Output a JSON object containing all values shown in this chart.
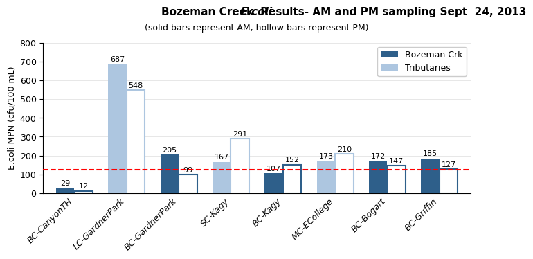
{
  "title_part1": "Bozeman Creek ",
  "title_ecoli": "E.coli",
  "title_part2": " Results- AM and PM sampling Sept  24, 2013",
  "title_line2": "(solid bars represent AM, hollow bars represent PM)",
  "ylabel": "E.coli MPN (cfu/100 mL)",
  "ylim": [
    0,
    800
  ],
  "yticks": [
    0,
    100,
    200,
    300,
    400,
    500,
    600,
    700,
    800
  ],
  "redline_y": 126,
  "categories": [
    "BC-CanyonTH",
    "LC-GardnerPark",
    "BC-GardnerPark",
    "SC-Kagy",
    "BC-Kagy",
    "MC-ECollege",
    "BC-Bogart",
    "BC-Griffin"
  ],
  "am_values": [
    29,
    687,
    205,
    167,
    107,
    173,
    172,
    185
  ],
  "pm_values": [
    12,
    548,
    99,
    291,
    152,
    210,
    147,
    127
  ],
  "am_is_bozeman": [
    true,
    false,
    true,
    false,
    true,
    false,
    true,
    true
  ],
  "pm_is_bozeman": [
    false,
    false,
    false,
    false,
    false,
    false,
    false,
    false
  ],
  "color_bozeman": "#2e5f8a",
  "color_tributary": "#adc6e0",
  "bar_width": 0.35,
  "legend_labels": [
    "Bozeman Crk",
    "Tributaries"
  ],
  "legend_colors": [
    "#2e5f8a",
    "#adc6e0"
  ],
  "background_color": "#ffffff",
  "label_fontsize": 8,
  "title_fontsize": 11,
  "subtitle_fontsize": 9,
  "ylabel_fontsize": 9,
  "tick_fontsize": 9
}
